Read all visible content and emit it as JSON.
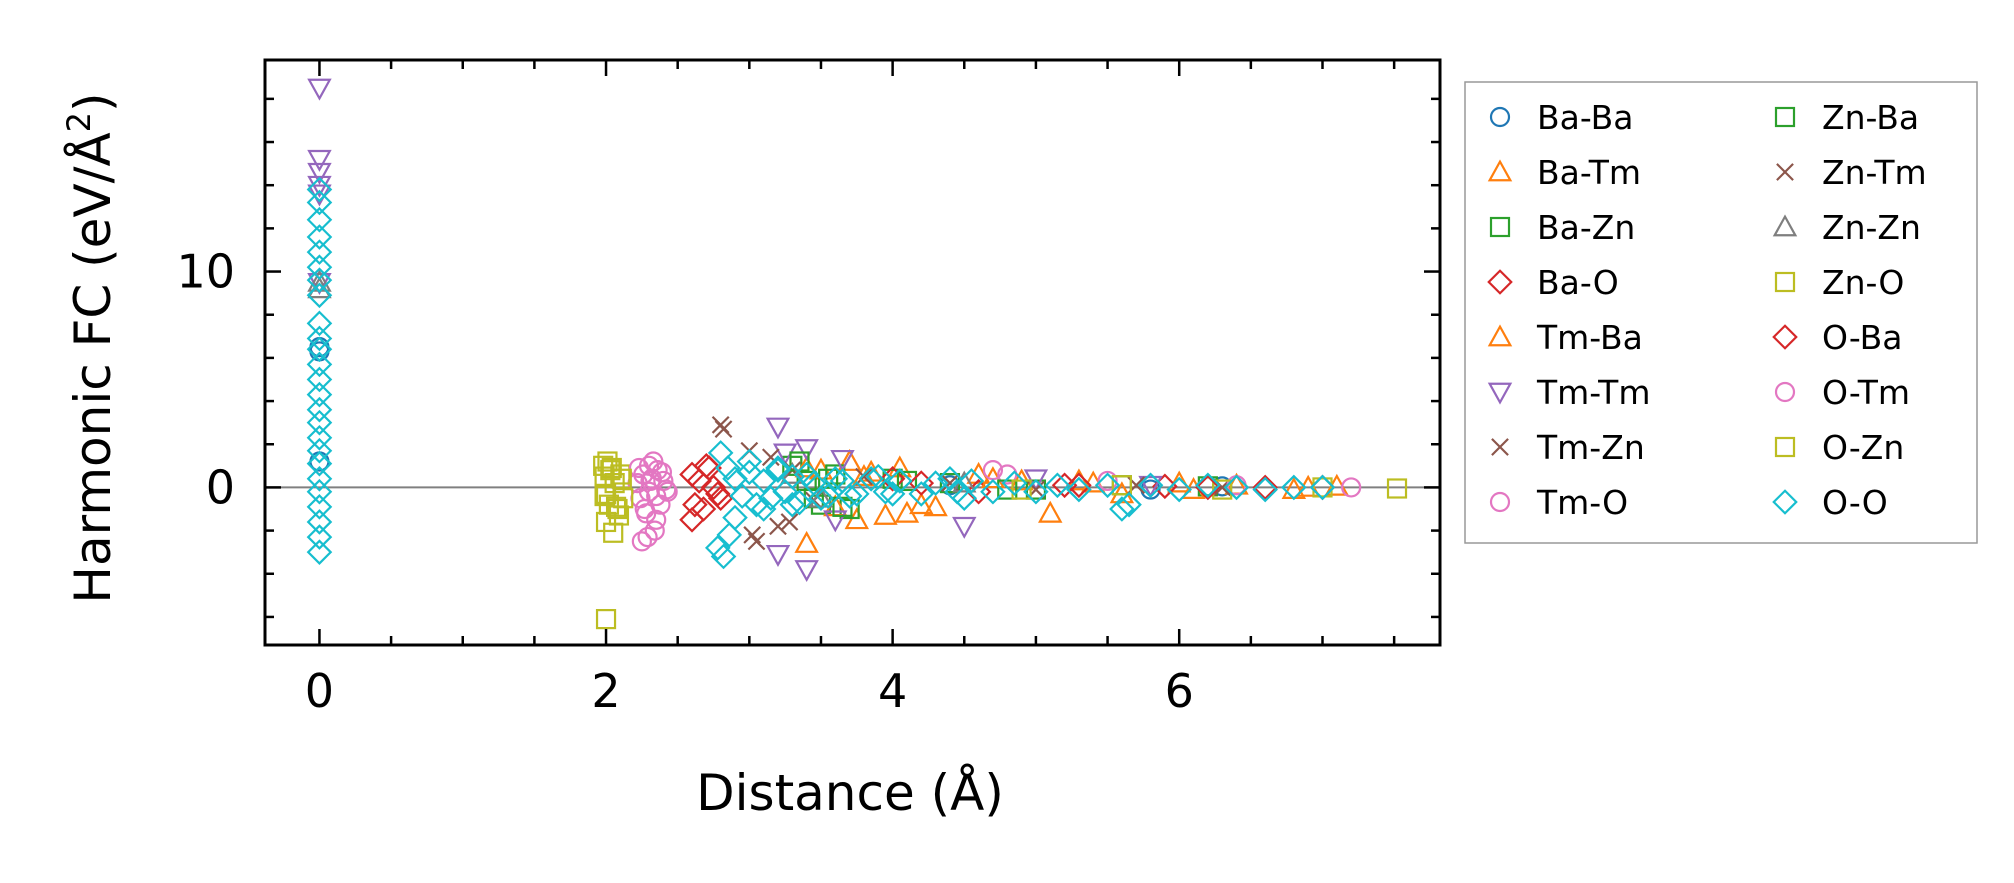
{
  "chart_data": {
    "type": "scatter",
    "title": "",
    "xlabel": "Distance (Å)",
    "ylabel": "Harmonic FC (eV/Å",
    "ylabel_superscript": "2",
    "ylabel_suffix": ")",
    "xlim": [
      -0.38,
      7.82
    ],
    "ylim": [
      -7.3,
      19.8
    ],
    "xticks": [
      0,
      2,
      4,
      6
    ],
    "yticks": [
      0,
      10
    ],
    "xtick_labels": [
      "0",
      "2",
      "4",
      "6"
    ],
    "ytick_labels": [
      "0",
      "10"
    ],
    "reference_line_y": 0,
    "legend_position": "outside-right",
    "series": [
      {
        "name": "Ba-Ba",
        "marker": "circle",
        "color": "#1f77b4",
        "x": [
          0,
          0,
          0,
          4.4,
          5.8,
          6.3
        ],
        "y": [
          6.5,
          6.3,
          1.2,
          0.1,
          -0.1,
          0.05
        ]
      },
      {
        "name": "Ba-Tm",
        "marker": "triangle-up",
        "color": "#ff7f0e",
        "x": [
          3.4,
          3.5,
          3.7,
          3.75,
          3.8,
          3.95,
          4.05,
          4.1,
          4.3,
          4.6,
          4.9,
          5.1,
          5.3,
          5.6,
          6.0,
          6.4,
          6.8,
          7.1
        ],
        "y": [
          -2.6,
          0.8,
          1.2,
          -1.5,
          0.5,
          -1.3,
          0.9,
          -1.2,
          -0.9,
          0.6,
          0.3,
          -1.2,
          0.3,
          -0.3,
          0.2,
          0.1,
          -0.1,
          0.05
        ]
      },
      {
        "name": "Ba-Zn",
        "marker": "square",
        "color": "#2ca02c",
        "x": [
          3.3,
          3.4,
          3.5,
          3.6,
          3.7,
          4.0,
          4.4,
          5.0,
          5.6,
          6.2
        ],
        "y": [
          1.0,
          0.3,
          -0.8,
          0.6,
          -1.0,
          0.4,
          0.2,
          -0.1,
          0.1,
          0.05
        ]
      },
      {
        "name": "Ba-O",
        "marker": "diamond",
        "color": "#d62728",
        "x": [
          2.6,
          2.62,
          2.65,
          2.7,
          2.75,
          2.8,
          4.0,
          4.6,
          5.2,
          5.9,
          6.6,
          7.0
        ],
        "y": [
          -1.5,
          -0.8,
          0.3,
          1.0,
          0.0,
          -0.5,
          0.4,
          -0.2,
          0.1,
          0.05,
          0.0,
          0.0
        ]
      },
      {
        "name": "Tm-Ba",
        "marker": "triangle-up",
        "color": "#ff7f0e",
        "x": [
          3.4,
          3.6,
          3.85,
          4.2,
          4.7,
          5.4,
          6.1,
          6.9
        ],
        "y": [
          0.9,
          -0.9,
          0.7,
          -0.8,
          0.4,
          0.2,
          -0.1,
          0.0
        ]
      },
      {
        "name": "Tm-Tm",
        "marker": "triangle-down",
        "color": "#9467bd",
        "x": [
          0,
          0,
          0,
          0,
          0,
          0,
          3.2,
          3.2,
          3.25,
          3.4,
          3.4,
          3.6,
          3.65,
          4.5,
          5.0,
          5.8
        ],
        "y": [
          18.5,
          15.2,
          14.6,
          14.0,
          13.6,
          9.5,
          2.8,
          -3.1,
          1.6,
          1.8,
          -3.8,
          -1.5,
          1.3,
          -1.8,
          0.4,
          0.1
        ]
      },
      {
        "name": "Tm-Zn",
        "marker": "cross",
        "color": "#8c564b",
        "x": [
          2.8,
          3.0,
          3.05,
          3.2,
          3.3,
          3.45,
          3.8,
          4.4,
          5.0,
          5.7,
          6.3
        ],
        "y": [
          2.9,
          1.7,
          -2.5,
          -1.8,
          0.8,
          -0.6,
          0.5,
          0.2,
          -0.1,
          0.1,
          0.0
        ]
      },
      {
        "name": "Tm-O",
        "marker": "circle",
        "color": "#e377c2",
        "x": [
          2.22,
          2.24,
          2.26,
          2.28,
          2.3,
          2.32,
          2.34,
          2.36,
          2.38,
          2.4,
          2.42,
          2.25,
          2.3,
          2.35,
          4.7,
          4.8,
          5.5,
          6.4,
          7.2
        ],
        "y": [
          0.2,
          -0.5,
          0.6,
          -1.2,
          -0.2,
          0.4,
          -2.0,
          0.8,
          -0.8,
          0.3,
          -0.1,
          -2.5,
          1.0,
          -1.5,
          0.8,
          0.6,
          0.3,
          0.1,
          0.0
        ]
      },
      {
        "name": "Zn-Ba",
        "marker": "square",
        "color": "#2ca02c",
        "x": [
          3.35,
          3.45,
          3.55,
          3.65,
          4.1,
          4.8
        ],
        "y": [
          1.2,
          -0.5,
          0.4,
          -0.9,
          0.3,
          -0.1
        ]
      },
      {
        "name": "Zn-Tm",
        "marker": "cross",
        "color": "#8c564b",
        "x": [
          2.82,
          3.02,
          3.15,
          3.28
        ],
        "y": [
          2.7,
          -2.2,
          1.4,
          -1.6
        ]
      },
      {
        "name": "Zn-Zn",
        "marker": "triangle-up",
        "color": "#7f7f7f",
        "x": [
          0,
          0,
          3.3,
          3.5,
          4.5
        ],
        "y": [
          9.5,
          9.2,
          0.6,
          -0.5,
          0.2
        ]
      },
      {
        "name": "Zn-O",
        "marker": "square",
        "color": "#bcbd22",
        "x": [
          1.98,
          1.99,
          2.0,
          2.02,
          2.04,
          2.06,
          2.08,
          2.1,
          2.12,
          2.0,
          2.05,
          2.0,
          4.9,
          5.6,
          6.3,
          7.0,
          7.52
        ],
        "y": [
          1.0,
          0.5,
          -0.3,
          -0.8,
          0.9,
          0.2,
          -1.0,
          0.6,
          -0.5,
          -1.6,
          -2.1,
          -6.1,
          -0.1,
          0.1,
          -0.1,
          0.0,
          -0.05
        ]
      },
      {
        "name": "O-Ba",
        "marker": "diamond",
        "color": "#d62728",
        "x": [
          2.6,
          2.68,
          2.72,
          2.78,
          4.2,
          5.3,
          6.2
        ],
        "y": [
          0.6,
          -1.0,
          0.9,
          -0.3,
          0.2,
          0.1,
          0.0
        ]
      },
      {
        "name": "O-Tm",
        "marker": "circle",
        "color": "#e377c2",
        "x": [
          2.23,
          2.27,
          2.31,
          2.35,
          2.39,
          2.43,
          2.29,
          2.33
        ],
        "y": [
          0.9,
          -1.0,
          0.3,
          -0.4,
          0.7,
          -0.2,
          -2.3,
          1.2
        ]
      },
      {
        "name": "O-Zn",
        "marker": "square",
        "color": "#bcbd22",
        "x": [
          1.99,
          2.03,
          2.07,
          2.11,
          2.01,
          2.09
        ],
        "y": [
          -0.4,
          0.8,
          -0.9,
          0.4,
          1.2,
          -1.3
        ]
      },
      {
        "name": "O-O",
        "marker": "diamond",
        "color": "#17becf",
        "x": [
          0,
          0,
          0,
          0,
          0,
          0,
          0,
          0,
          0,
          0,
          0,
          0,
          0,
          0,
          0,
          0,
          0,
          0,
          0,
          0,
          0,
          0,
          0,
          0,
          0,
          2.8,
          2.85,
          2.9,
          2.95,
          3.0,
          3.05,
          3.1,
          3.15,
          3.2,
          3.25,
          3.3,
          3.35,
          3.45,
          3.55,
          3.65,
          3.75,
          3.85,
          3.95,
          4.05,
          4.2,
          4.3,
          4.45,
          4.55,
          4.7,
          4.85,
          5.0,
          5.15,
          5.3,
          5.5,
          5.65,
          5.8,
          6.0,
          6.2,
          6.4,
          6.6,
          6.8,
          7.0,
          2.78,
          2.82,
          2.86,
          2.9,
          3.0,
          3.1,
          3.2,
          3.3,
          3.4,
          3.5,
          3.6,
          3.7,
          3.9,
          4.0,
          4.4,
          4.5,
          5.6
        ],
        "y": [
          13.8,
          13.2,
          12.4,
          11.6,
          10.9,
          10.2,
          9.6,
          8.9,
          7.6,
          6.9,
          6.4,
          5.7,
          5.0,
          4.3,
          3.6,
          3.0,
          2.3,
          1.7,
          1.1,
          0.4,
          -0.2,
          -0.9,
          -1.6,
          -2.3,
          -3.0,
          1.6,
          0.9,
          0.4,
          -0.4,
          0.7,
          -0.8,
          0.3,
          -0.5,
          0.9,
          -0.2,
          0.5,
          -0.7,
          0.2,
          -0.4,
          0.3,
          -0.3,
          0.4,
          -0.2,
          0.3,
          -0.3,
          0.2,
          -0.2,
          0.3,
          -0.2,
          0.2,
          -0.2,
          0.1,
          -0.1,
          0.1,
          -0.8,
          0.1,
          -0.1,
          0.1,
          0.0,
          -0.1,
          0.0,
          0.0,
          -2.8,
          -3.2,
          -2.2,
          -1.4,
          1.2,
          -1.0,
          0.8,
          -0.8,
          0.6,
          -0.5,
          0.4,
          -0.4,
          0.5,
          -0.3,
          0.4,
          -0.5,
          -1.0
        ]
      }
    ]
  }
}
